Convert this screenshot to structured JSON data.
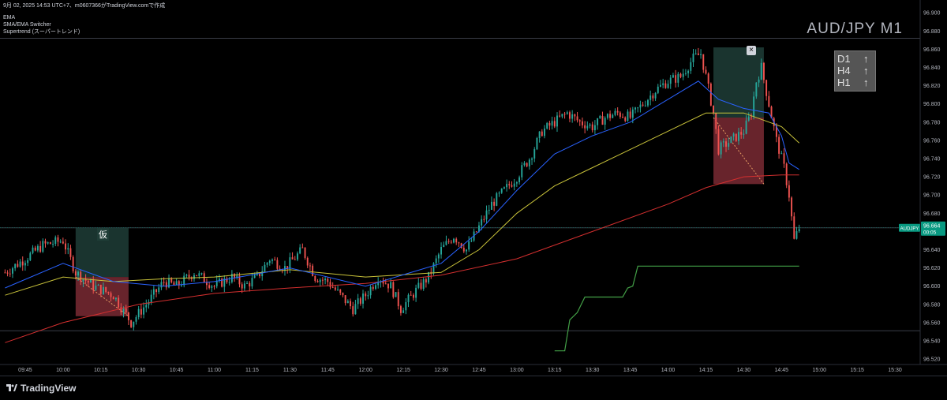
{
  "header": {
    "line1": "9月 02, 2025 14:53 UTC+7、m0607366がTradingView.comで作成",
    "line2": "EMA",
    "line3": "SMA/EMA Switcher",
    "line4": "Supertrend (スーパートレンド)"
  },
  "big_title": "AUD/JPY M1",
  "timeframes": [
    {
      "label": "D1",
      "arrow": "↑"
    },
    {
      "label": "H4",
      "arrow": "↑"
    },
    {
      "label": "H1",
      "arrow": "↑"
    }
  ],
  "close_label": "×",
  "tentative_label": "仮",
  "price_badge": {
    "symbol": "AUDJPY",
    "price": "96.664",
    "countdown": "00:05"
  },
  "footer": {
    "logo_text": "TradingView"
  },
  "colors": {
    "up": "#26a69a",
    "down": "#ef5350",
    "ema_fast": "#2962ff",
    "ema_mid": "#c9c33a",
    "ema_slow": "#d32f2f",
    "supertrend": "#43a047",
    "zone_green": "#1f3d37",
    "zone_red": "#7a2a34",
    "badge": "#089981"
  },
  "chart_data": {
    "type": "candlestick",
    "y_ticks": [
      "96.900",
      "96.880",
      "96.860",
      "96.840",
      "96.820",
      "96.800",
      "96.780",
      "96.760",
      "96.740",
      "96.720",
      "96.700",
      "96.680",
      "96.660",
      "96.640",
      "96.620",
      "96.600",
      "96.580",
      "96.560",
      "96.540",
      "96.520"
    ],
    "x_ticks": [
      "09:45",
      "10:00",
      "10:15",
      "10:30",
      "10:45",
      "11:00",
      "11:15",
      "11:30",
      "11:45",
      "12:00",
      "12:15",
      "12:30",
      "12:45",
      "13:00",
      "13:15",
      "13:30",
      "13:45",
      "14:00",
      "14:15",
      "14:30",
      "14:45",
      "15:00",
      "15:15",
      "15:30"
    ],
    "ylim": [
      96.514,
      96.914
    ],
    "xlim": [
      "09:35",
      "15:40"
    ],
    "last_price": 96.664,
    "close_path": [
      [
        "09:37",
        96.615
      ],
      [
        "09:45",
        96.63
      ],
      [
        "09:52",
        96.645
      ],
      [
        "10:00",
        96.65
      ],
      [
        "10:05",
        96.615
      ],
      [
        "10:12",
        96.6
      ],
      [
        "10:20",
        96.59
      ],
      [
        "10:27",
        96.56
      ],
      [
        "10:33",
        96.58
      ],
      [
        "10:40",
        96.605
      ],
      [
        "10:45",
        96.6
      ],
      [
        "10:52",
        96.615
      ],
      [
        "11:00",
        96.6
      ],
      [
        "11:07",
        96.61
      ],
      [
        "11:12",
        96.6
      ],
      [
        "11:17",
        96.61
      ],
      [
        "11:22",
        96.63
      ],
      [
        "11:28",
        96.62
      ],
      [
        "11:35",
        96.64
      ],
      [
        "11:40",
        96.61
      ],
      [
        "11:45",
        96.605
      ],
      [
        "11:50",
        96.59
      ],
      [
        "11:55",
        96.575
      ],
      [
        "12:00",
        96.59
      ],
      [
        "12:05",
        96.61
      ],
      [
        "12:10",
        96.6
      ],
      [
        "12:14",
        96.575
      ],
      [
        "12:20",
        96.595
      ],
      [
        "12:25",
        96.61
      ],
      [
        "12:30",
        96.64
      ],
      [
        "12:35",
        96.655
      ],
      [
        "12:40",
        96.64
      ],
      [
        "12:45",
        96.665
      ],
      [
        "12:50",
        96.69
      ],
      [
        "12:55",
        96.705
      ],
      [
        "13:00",
        96.72
      ],
      [
        "13:05",
        96.74
      ],
      [
        "13:10",
        96.77
      ],
      [
        "13:15",
        96.78
      ],
      [
        "13:20",
        96.79
      ],
      [
        "13:25",
        96.78
      ],
      [
        "13:30",
        96.775
      ],
      [
        "13:35",
        96.785
      ],
      [
        "13:40",
        96.79
      ],
      [
        "13:45",
        96.785
      ],
      [
        "13:50",
        96.8
      ],
      [
        "13:55",
        96.815
      ],
      [
        "14:00",
        96.825
      ],
      [
        "14:05",
        96.83
      ],
      [
        "14:10",
        96.85
      ],
      [
        "14:13",
        96.855
      ],
      [
        "14:15",
        96.83
      ],
      [
        "14:18",
        96.79
      ],
      [
        "14:20",
        96.75
      ],
      [
        "14:25",
        96.76
      ],
      [
        "14:30",
        96.77
      ],
      [
        "14:33",
        96.79
      ],
      [
        "14:35",
        96.825
      ],
      [
        "14:37",
        96.84
      ],
      [
        "14:40",
        96.8
      ],
      [
        "14:43",
        96.76
      ],
      [
        "14:46",
        96.73
      ],
      [
        "14:48",
        96.7
      ],
      [
        "14:50",
        96.65
      ],
      [
        "14:52",
        96.664
      ]
    ],
    "ema_fast": [
      [
        "09:37",
        96.598
      ],
      [
        "10:00",
        96.625
      ],
      [
        "10:20",
        96.605
      ],
      [
        "10:40",
        96.6
      ],
      [
        "11:00",
        96.605
      ],
      [
        "11:30",
        96.62
      ],
      [
        "12:00",
        96.6
      ],
      [
        "12:30",
        96.625
      ],
      [
        "12:45",
        96.66
      ],
      [
        "13:00",
        96.705
      ],
      [
        "13:15",
        96.745
      ],
      [
        "13:30",
        96.765
      ],
      [
        "13:45",
        96.78
      ],
      [
        "14:00",
        96.805
      ],
      [
        "14:12",
        96.825
      ],
      [
        "14:20",
        96.805
      ],
      [
        "14:30",
        96.795
      ],
      [
        "14:40",
        96.79
      ],
      [
        "14:45",
        96.765
      ],
      [
        "14:48",
        96.735
      ],
      [
        "14:52",
        96.728
      ]
    ],
    "ema_mid": [
      [
        "09:37",
        96.59
      ],
      [
        "10:00",
        96.61
      ],
      [
        "10:20",
        96.605
      ],
      [
        "10:40",
        96.608
      ],
      [
        "11:00",
        96.61
      ],
      [
        "11:30",
        96.618
      ],
      [
        "12:00",
        96.61
      ],
      [
        "12:30",
        96.615
      ],
      [
        "12:45",
        96.64
      ],
      [
        "13:00",
        96.68
      ],
      [
        "13:15",
        96.71
      ],
      [
        "13:30",
        96.73
      ],
      [
        "13:45",
        96.75
      ],
      [
        "14:00",
        96.77
      ],
      [
        "14:15",
        96.79
      ],
      [
        "14:30",
        96.79
      ],
      [
        "14:45",
        96.775
      ],
      [
        "14:52",
        96.757
      ]
    ],
    "ema_slow": [
      [
        "09:37",
        96.538
      ],
      [
        "10:00",
        96.56
      ],
      [
        "10:30",
        96.58
      ],
      [
        "11:00",
        96.592
      ],
      [
        "11:30",
        96.598
      ],
      [
        "12:00",
        96.603
      ],
      [
        "12:30",
        96.612
      ],
      [
        "13:00",
        96.63
      ],
      [
        "13:30",
        96.66
      ],
      [
        "14:00",
        96.69
      ],
      [
        "14:15",
        96.708
      ],
      [
        "14:30",
        96.72
      ],
      [
        "14:45",
        96.722
      ],
      [
        "14:52",
        96.722
      ]
    ],
    "supertrend": [
      [
        "13:15",
        96.529
      ],
      [
        "13:19",
        96.529
      ],
      [
        "13:21",
        96.563
      ],
      [
        "13:24",
        96.571
      ],
      [
        "13:27",
        96.588
      ],
      [
        "13:42",
        96.588
      ],
      [
        "13:44",
        96.598
      ],
      [
        "13:46",
        96.6
      ],
      [
        "13:48",
        96.622
      ],
      [
        "14:52",
        96.622
      ]
    ],
    "zones": [
      {
        "x0": "10:05",
        "x1": "10:26",
        "y0": 96.61,
        "y1": 96.664,
        "kind": "profit"
      },
      {
        "x0": "10:05",
        "x1": "10:26",
        "y0": 96.567,
        "y1": 96.61,
        "kind": "loss"
      },
      {
        "x0": "14:18",
        "x1": "14:38",
        "y0": 96.785,
        "y1": 96.862,
        "kind": "profit"
      },
      {
        "x0": "14:18",
        "x1": "14:38",
        "y0": 96.712,
        "y1": 96.785,
        "kind": "loss"
      }
    ],
    "hlines": [
      96.872,
      96.664,
      96.551
    ]
  }
}
